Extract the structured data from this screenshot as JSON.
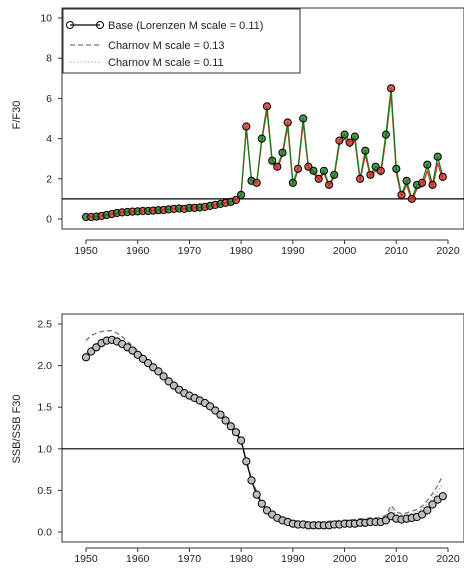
{
  "chart_data": [
    {
      "type": "line",
      "ylabel": "F/F30",
      "xlim": [
        1950,
        2020
      ],
      "ylim": [
        0,
        10
      ],
      "x_ticks": [
        1950,
        1960,
        1970,
        1980,
        1990,
        2000,
        2010,
        2020
      ],
      "y_ticks": [
        0,
        2,
        4,
        6,
        8,
        10
      ],
      "reference_line": 1,
      "legend_position": "top-left",
      "legend": [
        {
          "label": "Base (Lorenzen M scale = 0.11)",
          "style": "solid-circles",
          "color": "#000000"
        },
        {
          "label": "Charnov M scale = 0.13",
          "style": "dashed",
          "color": "#777777"
        },
        {
          "label": "Charnov M scale = 0.11",
          "style": "dotted",
          "color": "#bbbbbb"
        }
      ],
      "x": [
        1950,
        1951,
        1952,
        1953,
        1954,
        1955,
        1956,
        1957,
        1958,
        1959,
        1960,
        1961,
        1962,
        1963,
        1964,
        1965,
        1966,
        1967,
        1968,
        1969,
        1970,
        1971,
        1972,
        1973,
        1974,
        1975,
        1976,
        1977,
        1978,
        1979,
        1980,
        1981,
        1982,
        1983,
        1984,
        1985,
        1986,
        1987,
        1988,
        1989,
        1990,
        1991,
        1992,
        1993,
        1994,
        1995,
        1996,
        1997,
        1998,
        1999,
        2000,
        2001,
        2002,
        2003,
        2004,
        2005,
        2006,
        2007,
        2008,
        2009,
        2010,
        2011,
        2012,
        2013,
        2014,
        2015,
        2016,
        2017,
        2018,
        2019
      ],
      "series": [
        {
          "name": "Base (Lorenzen M scale = 0.11)",
          "color": "#1f7a1f",
          "values": [
            0.1,
            0.1,
            0.12,
            0.15,
            0.2,
            0.25,
            0.3,
            0.33,
            0.35,
            0.37,
            0.38,
            0.4,
            0.4,
            0.42,
            0.44,
            0.45,
            0.48,
            0.5,
            0.52,
            0.5,
            0.55,
            0.55,
            0.57,
            0.6,
            0.65,
            0.7,
            0.75,
            0.8,
            0.85,
            0.95,
            1.2,
            4.6,
            1.9,
            1.8,
            4.0,
            5.6,
            2.9,
            2.6,
            3.3,
            4.8,
            1.8,
            2.5,
            5.0,
            2.6,
            2.4,
            2.0,
            2.4,
            1.7,
            2.2,
            3.9,
            4.2,
            3.8,
            4.1,
            2.0,
            3.4,
            2.2,
            2.6,
            2.4,
            4.2,
            6.5,
            2.5,
            1.2,
            1.9,
            1.0,
            1.7,
            1.8,
            2.7,
            1.7,
            3.1,
            2.1
          ]
        },
        {
          "name": "Charnov M scale = 0.13",
          "color": "#d0352b",
          "values": [
            0.1,
            0.1,
            0.12,
            0.15,
            0.2,
            0.25,
            0.3,
            0.33,
            0.35,
            0.37,
            0.38,
            0.4,
            0.4,
            0.42,
            0.44,
            0.45,
            0.48,
            0.5,
            0.52,
            0.5,
            0.55,
            0.55,
            0.57,
            0.6,
            0.65,
            0.7,
            0.75,
            0.8,
            0.85,
            0.95,
            1.2,
            4.5,
            1.9,
            1.8,
            3.9,
            5.4,
            2.8,
            2.5,
            3.2,
            4.6,
            1.7,
            2.4,
            4.8,
            2.5,
            2.3,
            1.9,
            2.3,
            1.6,
            2.1,
            3.7,
            4.0,
            3.6,
            3.9,
            1.9,
            3.2,
            2.1,
            2.4,
            2.2,
            4.0,
            6.2,
            2.3,
            1.1,
            1.7,
            0.9,
            1.5,
            1.6,
            2.4,
            1.5,
            2.8,
            1.9
          ]
        }
      ]
    },
    {
      "type": "line",
      "ylabel": "SSB/SSB F30",
      "xlim": [
        1950,
        2020
      ],
      "ylim": [
        0,
        2.5
      ],
      "x_ticks": [
        1950,
        1960,
        1970,
        1980,
        1990,
        2000,
        2010,
        2020
      ],
      "y_ticks": [
        "0.0",
        "0.5",
        "1.0",
        "1.5",
        "2.0",
        "2.5"
      ],
      "reference_line": 1,
      "x": [
        1950,
        1951,
        1952,
        1953,
        1954,
        1955,
        1956,
        1957,
        1958,
        1959,
        1960,
        1961,
        1962,
        1963,
        1964,
        1965,
        1966,
        1967,
        1968,
        1969,
        1970,
        1971,
        1972,
        1973,
        1974,
        1975,
        1976,
        1977,
        1978,
        1979,
        1980,
        1981,
        1982,
        1983,
        1984,
        1985,
        1986,
        1987,
        1988,
        1989,
        1990,
        1991,
        1992,
        1993,
        1994,
        1995,
        1996,
        1997,
        1998,
        1999,
        2000,
        2001,
        2002,
        2003,
        2004,
        2005,
        2006,
        2007,
        2008,
        2009,
        2010,
        2011,
        2012,
        2013,
        2014,
        2015,
        2016,
        2017,
        2018,
        2019
      ],
      "series": [
        {
          "name": "Base (Lorenzen M scale = 0.11)",
          "values": [
            2.1,
            2.17,
            2.22,
            2.27,
            2.3,
            2.31,
            2.29,
            2.26,
            2.22,
            2.18,
            2.13,
            2.08,
            2.03,
            1.98,
            1.93,
            1.87,
            1.81,
            1.76,
            1.71,
            1.67,
            1.64,
            1.61,
            1.58,
            1.55,
            1.51,
            1.46,
            1.41,
            1.34,
            1.27,
            1.2,
            1.1,
            0.85,
            0.62,
            0.45,
            0.34,
            0.26,
            0.21,
            0.17,
            0.14,
            0.12,
            0.1,
            0.09,
            0.09,
            0.08,
            0.08,
            0.08,
            0.08,
            0.08,
            0.09,
            0.09,
            0.1,
            0.1,
            0.1,
            0.11,
            0.11,
            0.12,
            0.12,
            0.12,
            0.14,
            0.19,
            0.16,
            0.15,
            0.16,
            0.17,
            0.18,
            0.21,
            0.26,
            0.33,
            0.39,
            0.43
          ]
        },
        {
          "name": "Charnov M scale = 0.13",
          "values": [
            2.3,
            2.36,
            2.39,
            2.41,
            2.42,
            2.42,
            2.39,
            2.35,
            2.29,
            2.24,
            2.18,
            2.12,
            2.06,
            2.0,
            1.94,
            1.88,
            1.82,
            1.76,
            1.71,
            1.66,
            1.62,
            1.59,
            1.56,
            1.53,
            1.49,
            1.44,
            1.39,
            1.33,
            1.26,
            1.19,
            1.08,
            0.86,
            0.64,
            0.48,
            0.37,
            0.29,
            0.24,
            0.2,
            0.17,
            0.15,
            0.14,
            0.13,
            0.13,
            0.12,
            0.12,
            0.12,
            0.12,
            0.13,
            0.13,
            0.14,
            0.14,
            0.15,
            0.15,
            0.16,
            0.16,
            0.17,
            0.17,
            0.18,
            0.2,
            0.32,
            0.24,
            0.22,
            0.23,
            0.25,
            0.27,
            0.31,
            0.38,
            0.46,
            0.56,
            0.68
          ]
        },
        {
          "name": "Charnov M scale = 0.11",
          "values": [
            2.15,
            2.21,
            2.26,
            2.29,
            2.31,
            2.31,
            2.29,
            2.25,
            2.2,
            2.15,
            2.1,
            2.04,
            1.99,
            1.94,
            1.89,
            1.83,
            1.77,
            1.72,
            1.67,
            1.63,
            1.6,
            1.57,
            1.54,
            1.51,
            1.47,
            1.43,
            1.38,
            1.32,
            1.25,
            1.18,
            1.07,
            0.84,
            0.62,
            0.46,
            0.35,
            0.27,
            0.22,
            0.18,
            0.15,
            0.13,
            0.12,
            0.11,
            0.11,
            0.1,
            0.1,
            0.1,
            0.1,
            0.11,
            0.11,
            0.12,
            0.12,
            0.13,
            0.13,
            0.14,
            0.14,
            0.15,
            0.15,
            0.16,
            0.18,
            0.27,
            0.21,
            0.2,
            0.21,
            0.22,
            0.24,
            0.28,
            0.34,
            0.41,
            0.49,
            0.58
          ]
        }
      ]
    }
  ]
}
